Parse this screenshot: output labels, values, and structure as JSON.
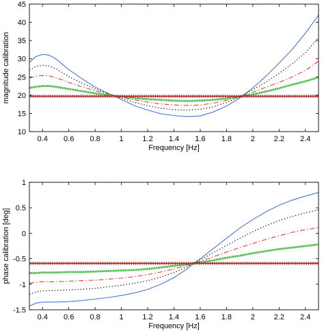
{
  "chart_data": [
    {
      "type": "line",
      "xlabel": "Frequency [Hz]",
      "ylabel": "magnitude calibration",
      "xlim": [
        0.3,
        2.5
      ],
      "ylim": [
        10,
        45
      ],
      "xticks": [
        0.4,
        0.6,
        0.8,
        1,
        1.2,
        1.4,
        1.6,
        1.8,
        2,
        2.2,
        2.4
      ],
      "yticks": [
        10,
        15,
        20,
        25,
        30,
        35,
        40,
        45
      ],
      "grid": false,
      "series": [
        {
          "style": "solid",
          "color": "#4a74d6",
          "x": [
            0.3,
            0.35,
            0.4,
            0.45,
            0.5,
            0.55,
            0.6,
            0.7,
            0.8,
            0.9,
            1.0,
            1.1,
            1.2,
            1.3,
            1.4,
            1.5,
            1.6,
            1.7,
            1.8,
            1.9,
            2.0,
            2.1,
            2.2,
            2.3,
            2.4,
            2.5
          ],
          "y": [
            29.0,
            30.6,
            31.2,
            31.0,
            30.0,
            28.5,
            27.0,
            24.5,
            22.2,
            20.5,
            18.8,
            17.1,
            15.9,
            14.9,
            14.4,
            14.1,
            14.3,
            15.4,
            17.0,
            19.2,
            22.0,
            25.2,
            28.8,
            32.6,
            37.0,
            42.0
          ]
        },
        {
          "style": "dotted",
          "color": "#000000",
          "x": [
            0.3,
            0.35,
            0.4,
            0.45,
            0.5,
            0.55,
            0.6,
            0.7,
            0.8,
            0.9,
            1.0,
            1.1,
            1.2,
            1.3,
            1.4,
            1.5,
            1.6,
            1.7,
            1.8,
            1.9,
            2.0,
            2.1,
            2.2,
            2.3,
            2.4,
            2.5
          ],
          "y": [
            26.9,
            27.9,
            28.2,
            28.0,
            27.3,
            26.2,
            25.1,
            23.3,
            21.7,
            20.4,
            19.2,
            18.0,
            17.1,
            16.4,
            16.0,
            15.9,
            16.1,
            16.8,
            18.0,
            19.5,
            21.5,
            23.6,
            26.0,
            28.6,
            31.6,
            35.8
          ]
        },
        {
          "style": "dashdot",
          "color": "#e83a2a",
          "x": [
            0.3,
            0.35,
            0.4,
            0.45,
            0.5,
            0.55,
            0.6,
            0.7,
            0.8,
            0.9,
            1.0,
            1.1,
            1.2,
            1.3,
            1.4,
            1.5,
            1.6,
            1.7,
            1.8,
            1.9,
            2.0,
            2.1,
            2.2,
            2.3,
            2.4,
            2.5
          ],
          "y": [
            24.7,
            25.2,
            25.4,
            25.3,
            24.8,
            24.2,
            23.5,
            22.3,
            21.2,
            20.3,
            19.5,
            18.7,
            18.1,
            17.6,
            17.3,
            17.2,
            17.3,
            17.8,
            18.6,
            19.6,
            20.8,
            22.2,
            23.5,
            25.0,
            26.8,
            29.3
          ]
        },
        {
          "style": "thick-marked",
          "color": "#21b021",
          "x": [
            0.3,
            0.35,
            0.4,
            0.45,
            0.5,
            0.55,
            0.6,
            0.7,
            0.8,
            0.9,
            1.0,
            1.1,
            1.2,
            1.3,
            1.4,
            1.5,
            1.6,
            1.7,
            1.8,
            1.9,
            2.0,
            2.1,
            2.2,
            2.3,
            2.4,
            2.5
          ],
          "y": [
            22.0,
            22.3,
            22.5,
            22.5,
            22.3,
            22.0,
            21.7,
            21.1,
            20.5,
            20.0,
            19.6,
            19.2,
            18.9,
            18.7,
            18.5,
            18.4,
            18.5,
            18.7,
            19.1,
            19.6,
            20.2,
            21.0,
            21.9,
            22.9,
            23.8,
            24.9
          ]
        },
        {
          "style": "marked",
          "color": "#b22222",
          "x": [
            0.3,
            2.5
          ],
          "y": [
            19.7,
            19.7
          ]
        }
      ]
    },
    {
      "type": "line",
      "xlabel": "Frequency [Hz]",
      "ylabel": "phase calibration [deg]",
      "xlim": [
        0.3,
        2.5
      ],
      "ylim": [
        -1.5,
        1
      ],
      "xticks": [
        0.4,
        0.6,
        0.8,
        1,
        1.2,
        1.4,
        1.6,
        1.8,
        2,
        2.2,
        2.4
      ],
      "yticks": [
        -1.5,
        -1,
        -0.5,
        0,
        0.5,
        1
      ],
      "grid": false,
      "series": [
        {
          "style": "solid",
          "color": "#4a74d6",
          "x": [
            0.3,
            0.35,
            0.4,
            0.5,
            0.6,
            0.7,
            0.8,
            0.9,
            1.0,
            1.1,
            1.2,
            1.3,
            1.4,
            1.5,
            1.55,
            1.6,
            1.7,
            1.8,
            1.9,
            2.0,
            2.1,
            2.2,
            2.3,
            2.4,
            2.5
          ],
          "y": [
            -1.43,
            -1.37,
            -1.35,
            -1.35,
            -1.34,
            -1.32,
            -1.29,
            -1.26,
            -1.22,
            -1.17,
            -1.1,
            -1.0,
            -0.87,
            -0.7,
            -0.59,
            -0.5,
            -0.3,
            -0.1,
            0.1,
            0.27,
            0.42,
            0.55,
            0.65,
            0.73,
            0.8
          ]
        },
        {
          "style": "dotted",
          "color": "#000000",
          "x": [
            0.3,
            0.35,
            0.4,
            0.5,
            0.6,
            0.7,
            0.8,
            0.9,
            1.0,
            1.1,
            1.2,
            1.3,
            1.4,
            1.5,
            1.55,
            1.6,
            1.7,
            1.8,
            1.9,
            2.0,
            2.1,
            2.2,
            2.3,
            2.4,
            2.5
          ],
          "y": [
            -1.2,
            -1.15,
            -1.13,
            -1.12,
            -1.11,
            -1.1,
            -1.08,
            -1.05,
            -1.02,
            -0.98,
            -0.93,
            -0.86,
            -0.77,
            -0.66,
            -0.59,
            -0.52,
            -0.38,
            -0.24,
            -0.1,
            0.03,
            0.15,
            0.25,
            0.33,
            0.4,
            0.46
          ]
        },
        {
          "style": "dashdot",
          "color": "#e83a2a",
          "x": [
            0.3,
            0.35,
            0.4,
            0.5,
            0.6,
            0.7,
            0.8,
            0.9,
            1.0,
            1.1,
            1.2,
            1.3,
            1.4,
            1.5,
            1.55,
            1.6,
            1.7,
            1.8,
            1.9,
            2.0,
            2.1,
            2.2,
            2.3,
            2.4,
            2.5
          ],
          "y": [
            -0.98,
            -0.96,
            -0.95,
            -0.95,
            -0.94,
            -0.93,
            -0.92,
            -0.9,
            -0.88,
            -0.85,
            -0.81,
            -0.76,
            -0.7,
            -0.63,
            -0.59,
            -0.55,
            -0.46,
            -0.37,
            -0.28,
            -0.2,
            -0.12,
            -0.05,
            0.02,
            0.07,
            0.11
          ]
        },
        {
          "style": "thick-marked",
          "color": "#21b021",
          "x": [
            0.3,
            0.35,
            0.4,
            0.5,
            0.6,
            0.7,
            0.8,
            0.9,
            1.0,
            1.1,
            1.2,
            1.3,
            1.4,
            1.5,
            1.55,
            1.6,
            1.7,
            1.8,
            1.9,
            2.0,
            2.1,
            2.2,
            2.3,
            2.4,
            2.5
          ],
          "y": [
            -0.78,
            -0.78,
            -0.77,
            -0.77,
            -0.76,
            -0.76,
            -0.75,
            -0.74,
            -0.73,
            -0.72,
            -0.7,
            -0.67,
            -0.64,
            -0.61,
            -0.59,
            -0.57,
            -0.53,
            -0.48,
            -0.44,
            -0.39,
            -0.35,
            -0.31,
            -0.28,
            -0.25,
            -0.22
          ]
        },
        {
          "style": "marked",
          "color": "#b22222",
          "x": [
            0.3,
            2.5
          ],
          "y": [
            -0.59,
            -0.59
          ]
        }
      ]
    }
  ]
}
